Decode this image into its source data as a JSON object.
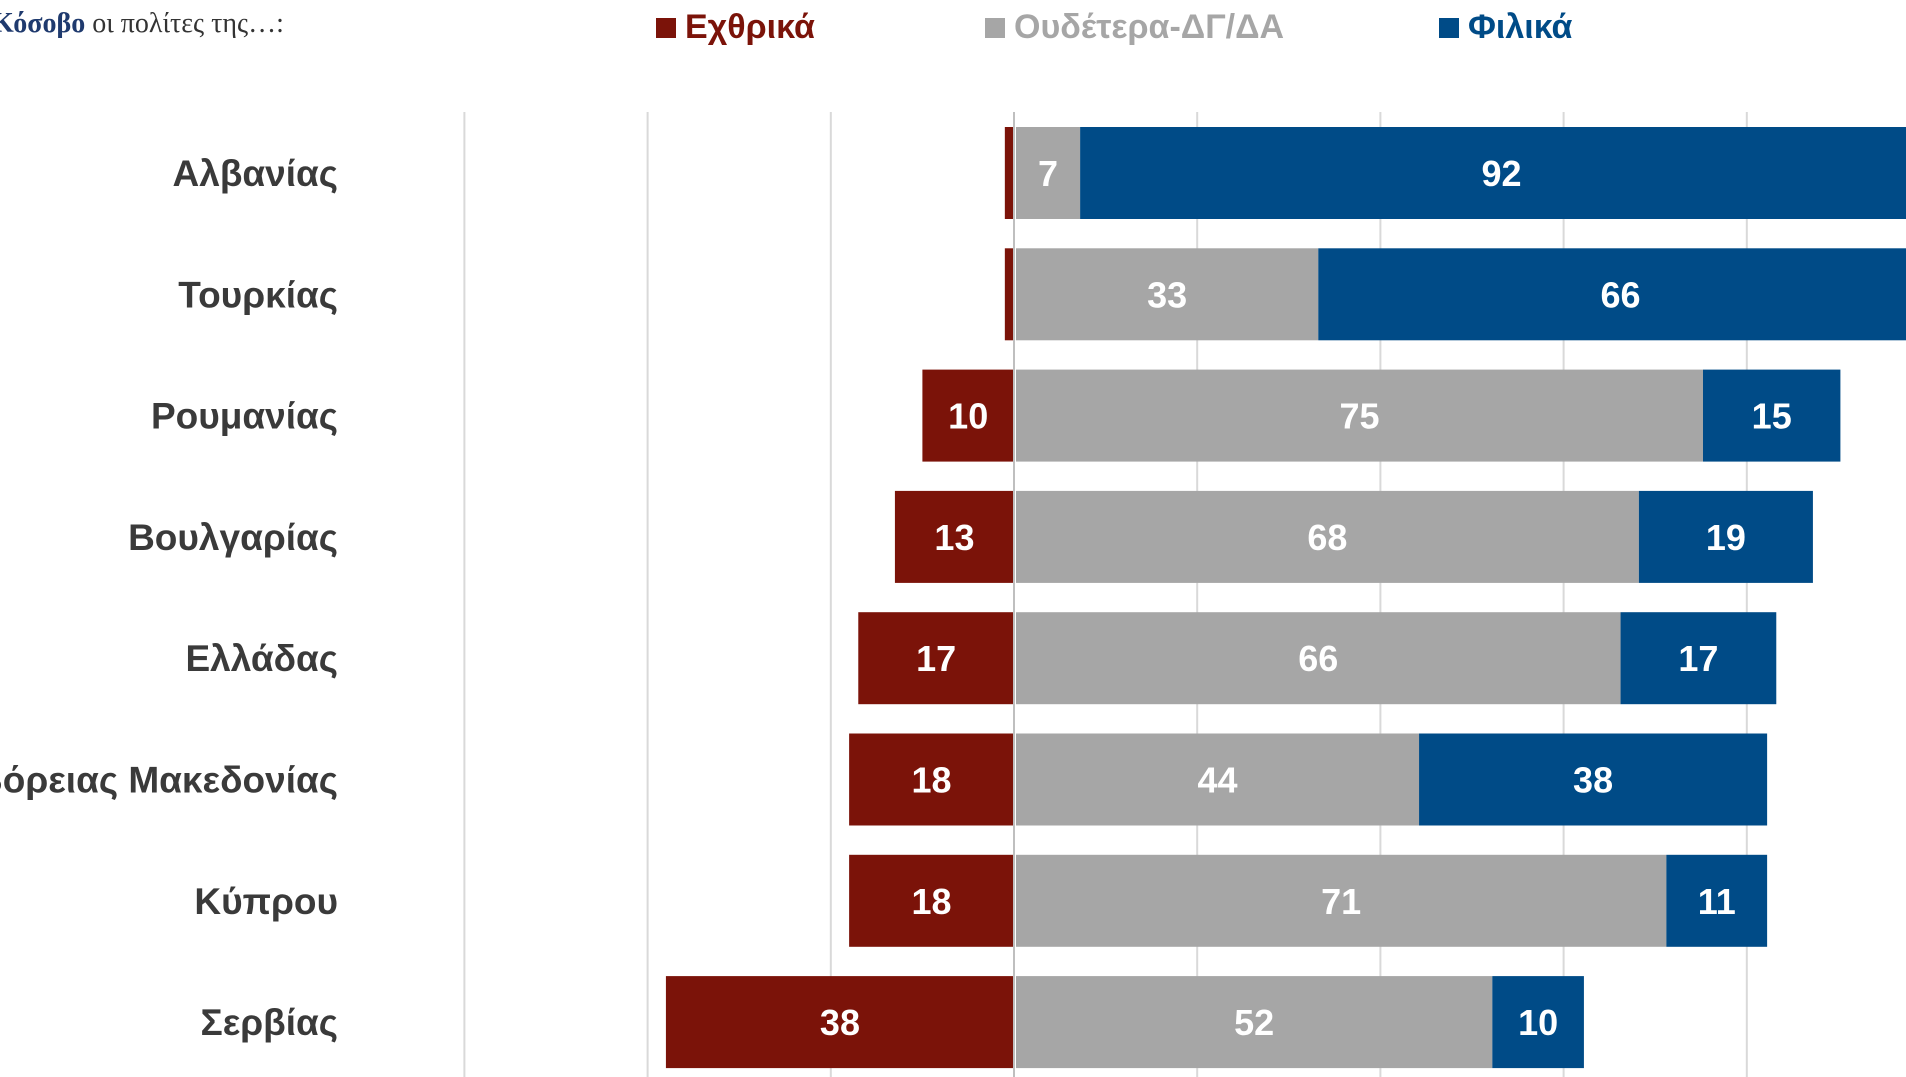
{
  "header": {
    "subtitle_bold": "Κόσοβο",
    "subtitle_rest": " οι πολίτες της…:"
  },
  "colors": {
    "hostile": "#7b1309",
    "neutral": "#a6a6a6",
    "friendly": "#004b87",
    "gridline": "#d9d9d9"
  },
  "chart_data": {
    "type": "bar",
    "orientation": "horizontal",
    "stacked": "diverging",
    "categories": [
      "Αλβανίας",
      "Τουρκίας",
      "Ρουμανίας",
      "Βουλγαρίας",
      "Ελλάδας",
      "Βόρειας Μακεδονίας",
      "Κύπρου",
      "Σερβίας"
    ],
    "series": [
      {
        "name": "Εχθρικά",
        "color": "#7b1309",
        "values": [
          1,
          1,
          10,
          13,
          17,
          18,
          18,
          38
        ],
        "labels": [
          "",
          "",
          "10",
          "13",
          "17",
          "18",
          "18",
          "38"
        ]
      },
      {
        "name": "Ουδέτερα-ΔΓ/ΔΑ",
        "color": "#a6a6a6",
        "values": [
          7,
          33,
          75,
          68,
          66,
          44,
          71,
          52
        ],
        "labels": [
          "7",
          "33",
          "75",
          "68",
          "66",
          "44",
          "71",
          "52"
        ]
      },
      {
        "name": "Φιλικά",
        "color": "#004b87",
        "values": [
          92,
          66,
          15,
          19,
          17,
          38,
          11,
          10
        ],
        "labels": [
          "92",
          "66",
          "15",
          "19",
          "17",
          "38",
          "11",
          "10"
        ]
      }
    ],
    "xlim": [
      -70,
      100
    ],
    "grid": true,
    "legend_position": "top"
  }
}
